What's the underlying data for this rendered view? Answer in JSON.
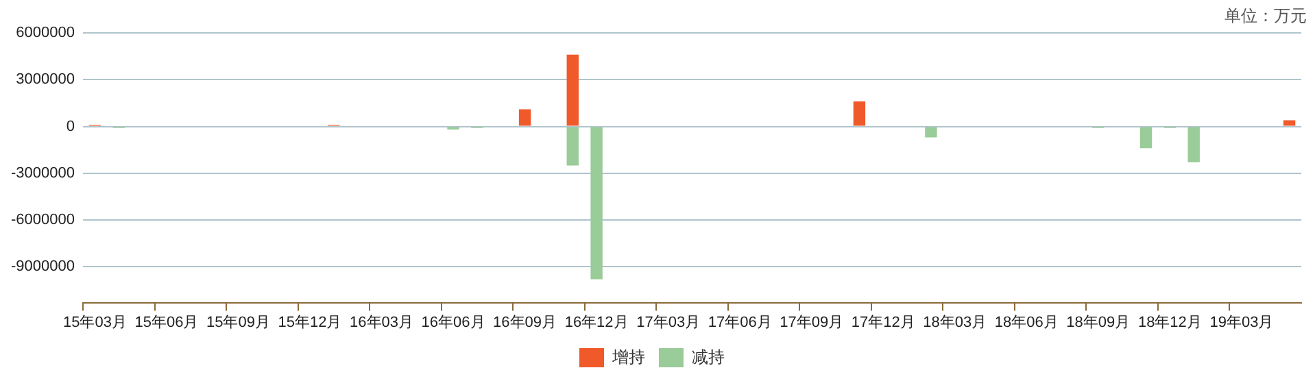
{
  "chart_data": {
    "type": "bar",
    "stacked": true,
    "annotations": [
      "单位：万元"
    ],
    "categories": [
      "15年03月",
      null,
      null,
      "15年06月",
      null,
      null,
      "15年09月",
      null,
      null,
      "15年12月",
      null,
      null,
      "16年03月",
      null,
      null,
      "16年06月",
      null,
      null,
      "16年09月",
      null,
      null,
      "16年12月",
      null,
      null,
      "17年03月",
      null,
      null,
      "17年06月",
      null,
      null,
      "17年09月",
      null,
      null,
      "17年12月",
      null,
      null,
      "18年03月",
      null,
      null,
      "18年06月",
      null,
      null,
      "18年09月",
      null,
      null,
      "18年12月",
      null,
      null,
      "19年03月",
      null,
      null
    ],
    "series": [
      {
        "name": "增持",
        "color": "#f05a2a",
        "values": [
          100000,
          null,
          null,
          null,
          null,
          null,
          null,
          null,
          null,
          null,
          100000,
          null,
          null,
          null,
          null,
          null,
          null,
          null,
          1100000,
          null,
          4600000,
          null,
          null,
          null,
          null,
          null,
          null,
          null,
          null,
          null,
          null,
          null,
          1600000,
          null,
          null,
          null,
          null,
          null,
          null,
          null,
          null,
          null,
          null,
          null,
          null,
          null,
          null,
          null,
          null,
          null,
          400000
        ]
      },
      {
        "name": "减持",
        "color": "#99cc99",
        "values": [
          null,
          -100000,
          null,
          null,
          null,
          null,
          null,
          null,
          null,
          null,
          null,
          null,
          null,
          null,
          null,
          -200000,
          -100000,
          null,
          null,
          null,
          -2500000,
          -9800000,
          null,
          null,
          null,
          null,
          null,
          null,
          null,
          null,
          null,
          null,
          null,
          null,
          null,
          -700000,
          null,
          null,
          null,
          null,
          null,
          null,
          -100000,
          null,
          -1400000,
          -100000,
          -2300000,
          null,
          null,
          null,
          null
        ]
      }
    ],
    "ylim": [
      -11300000,
      6000000
    ],
    "yticks": [
      -9000000,
      -6000000,
      -3000000,
      0,
      3000000,
      6000000
    ],
    "grid": "y",
    "legend": "bottom"
  }
}
